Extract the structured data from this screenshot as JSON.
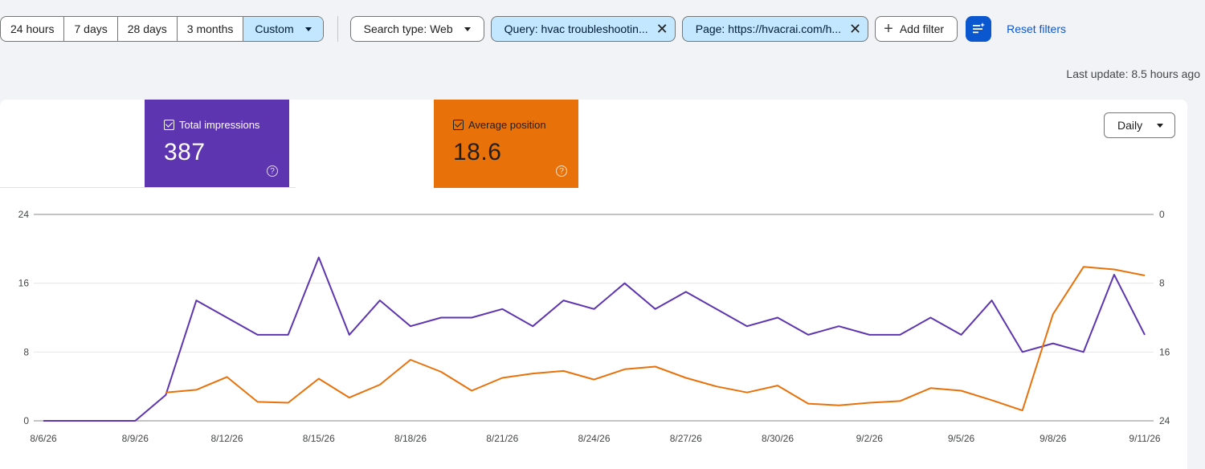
{
  "filters": {
    "date_ranges": [
      "24 hours",
      "7 days",
      "28 days",
      "3 months"
    ],
    "custom_label": "Custom",
    "search_type": "Search type: Web",
    "query_chip": "Query: hvac troubleshootin...",
    "page_chip": "Page: https://hvacrai.com/h...",
    "add_filter": "Add filter",
    "reset_filters": "Reset filters"
  },
  "last_update": "Last update: 8.5 hours ago",
  "metrics": {
    "impressions": {
      "label": "Total impressions",
      "value": "387",
      "color": "#5e35b1"
    },
    "position": {
      "label": "Average position",
      "value": "18.6",
      "color": "#e8710a"
    }
  },
  "granularity": "Daily",
  "chart_data": {
    "type": "line",
    "x": [
      "8/6/26",
      "8/7/26",
      "8/8/26",
      "8/9/26",
      "8/10/26",
      "8/11/26",
      "8/12/26",
      "8/13/26",
      "8/14/26",
      "8/15/26",
      "8/16/26",
      "8/17/26",
      "8/18/26",
      "8/19/26",
      "8/20/26",
      "8/21/26",
      "8/22/26",
      "8/23/26",
      "8/24/26",
      "8/25/26",
      "8/26/26",
      "8/27/26",
      "8/28/26",
      "8/29/26",
      "8/30/26",
      "8/31/26",
      "9/1/26",
      "9/2/26",
      "9/3/26",
      "9/4/26",
      "9/5/26",
      "9/6/26",
      "9/7/26",
      "9/8/26",
      "9/9/26",
      "9/10/26",
      "9/11/26"
    ],
    "x_tick_labels": [
      "8/6/26",
      "8/9/26",
      "8/12/26",
      "8/15/26",
      "8/18/26",
      "8/21/26",
      "8/24/26",
      "8/27/26",
      "8/30/26",
      "9/2/26",
      "9/5/26",
      "9/8/26",
      "9/11/26"
    ],
    "series": [
      {
        "name": "Total impressions",
        "axis": "left",
        "color": "#5e35b1",
        "values": [
          0,
          0,
          0,
          0,
          3,
          14,
          12,
          10,
          10,
          19,
          10,
          14,
          11,
          12,
          12,
          13,
          11,
          14,
          13,
          16,
          13,
          15,
          13,
          11,
          12,
          10,
          11,
          10,
          10,
          12,
          10,
          14,
          8,
          9,
          8,
          17,
          10
        ]
      },
      {
        "name": "Average position",
        "axis": "right",
        "color": "#e8710a",
        "values": [
          null,
          null,
          null,
          null,
          20.7,
          20.4,
          18.9,
          21.8,
          21.9,
          19.1,
          21.3,
          19.8,
          16.9,
          18.3,
          20.5,
          19.0,
          18.5,
          18.2,
          19.2,
          18.0,
          17.7,
          19.0,
          20.0,
          20.7,
          19.9,
          22.0,
          22.2,
          21.9,
          21.7,
          20.2,
          20.5,
          21.6,
          22.8,
          11.6,
          6.1,
          6.4,
          7.1
        ]
      }
    ],
    "y_left": {
      "range": [
        0,
        24
      ],
      "ticks": [
        "0",
        "8",
        "16",
        "24"
      ]
    },
    "y_right": {
      "range": [
        0,
        24
      ],
      "reversed": true,
      "ticks": [
        "0",
        "8",
        "16",
        "24"
      ]
    },
    "grid": true
  }
}
